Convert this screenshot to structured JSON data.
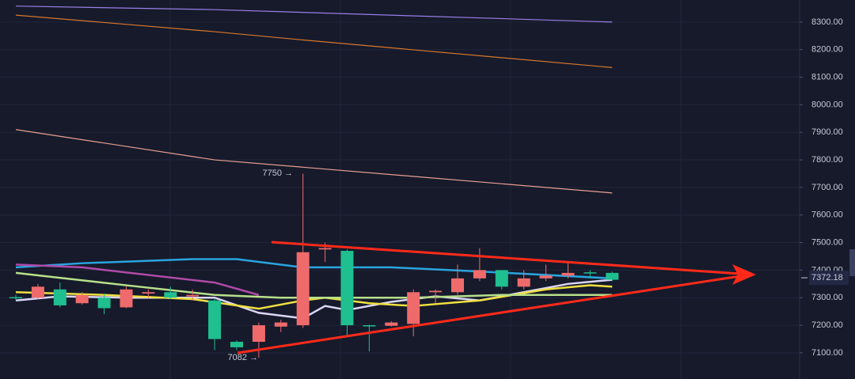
{
  "chart_data": {
    "type": "candlestick",
    "ylim": [
      7005,
      8380
    ],
    "yticks": [
      {
        "value": 7100,
        "label": "7100.00"
      },
      {
        "value": 7200,
        "label": "7200.00"
      },
      {
        "value": 7300,
        "label": "7300.00"
      },
      {
        "value": 7400,
        "label": "7400.00"
      },
      {
        "value": 7500,
        "label": "7500.00"
      },
      {
        "value": 7600,
        "label": "7600.00"
      },
      {
        "value": 7700,
        "label": "7700.00"
      },
      {
        "value": 7800,
        "label": "7800.00"
      },
      {
        "value": 7900,
        "label": "7900.00"
      },
      {
        "value": 8000,
        "label": "8000.00"
      },
      {
        "value": 8100,
        "label": "8100.00"
      },
      {
        "value": 8200,
        "label": "8200.00"
      },
      {
        "value": 8300,
        "label": "8300.00"
      }
    ],
    "grid": true,
    "up_color": "#1fbf8f",
    "down_color": "#ef6b6b",
    "candles": {
      "open": [
        7300,
        7340,
        7272,
        7310,
        7262,
        7330,
        7320,
        7300,
        7310,
        7150,
        7120,
        7200,
        7210,
        7465,
        7480,
        7200,
        7198,
        7210,
        7320,
        7325,
        7370,
        7400,
        7340,
        7370,
        7380,
        7390,
        7388,
        7365
      ],
      "high": [
        7310,
        7350,
        7355,
        7320,
        7315,
        7340,
        7330,
        7340,
        7330,
        7295,
        7145,
        7210,
        7220,
        7750,
        7500,
        7475,
        7202,
        7215,
        7330,
        7330,
        7420,
        7480,
        7400,
        7400,
        7420,
        7430,
        7400,
        7395
      ],
      "low": [
        7290,
        7295,
        7265,
        7275,
        7240,
        7262,
        7300,
        7295,
        7290,
        7110,
        7110,
        7082,
        7175,
        7190,
        7430,
        7160,
        7105,
        7195,
        7160,
        7280,
        7310,
        7360,
        7330,
        7330,
        7360,
        7370,
        7370,
        7360
      ],
      "close": [
        7302,
        7300,
        7330,
        7280,
        7300,
        7265,
        7315,
        7320,
        7305,
        7290,
        7140,
        7140,
        7195,
        7200,
        7475,
        7470,
        7200,
        7198,
        7205,
        7320,
        7320,
        7370,
        7400,
        7340,
        7370,
        7380,
        7392,
        7390
      ]
    },
    "lines": [
      {
        "color": "#9b7fe8",
        "x": [
          0,
          9,
          27
        ],
        "values": [
          8358,
          8345,
          8300
        ]
      },
      {
        "color": "#d9772b",
        "x": [
          0,
          9,
          13,
          27
        ],
        "values": [
          8325,
          8265,
          8235,
          8135
        ]
      },
      {
        "color": "#e8a090",
        "x": [
          0,
          9,
          27
        ],
        "values": [
          7910,
          7800,
          7680
        ]
      },
      {
        "color": "#2aa5e0",
        "x": [
          0,
          3,
          8,
          10,
          13,
          17,
          21,
          27
        ],
        "values": [
          7410,
          7425,
          7440,
          7440,
          7410,
          7410,
          7395,
          7370
        ]
      },
      {
        "color": "#b04aa8",
        "x": [
          0,
          3,
          9,
          11
        ],
        "values": [
          7420,
          7410,
          7355,
          7310
        ]
      },
      {
        "color": "#dcd6f7",
        "x": [
          0,
          2,
          5,
          9,
          11,
          13,
          14,
          15,
          17,
          19,
          21,
          23,
          25,
          27
        ],
        "values": [
          7290,
          7305,
          7300,
          7300,
          7245,
          7225,
          7270,
          7255,
          7285,
          7305,
          7290,
          7320,
          7350,
          7365
        ]
      },
      {
        "color": "#f0e040",
        "x": [
          0,
          4,
          8,
          11,
          13,
          14,
          16,
          18,
          21,
          24,
          26,
          27
        ],
        "values": [
          7320,
          7310,
          7295,
          7260,
          7290,
          7300,
          7280,
          7270,
          7290,
          7330,
          7345,
          7340
        ]
      },
      {
        "color": "#b8e08a",
        "x": [
          0,
          5,
          9,
          12,
          18,
          22,
          27
        ],
        "values": [
          7390,
          7345,
          7310,
          7300,
          7300,
          7310,
          7310
        ]
      }
    ],
    "high_label": "7750 →",
    "low_label": "7082 →",
    "last_price": 7372.18
  }
}
